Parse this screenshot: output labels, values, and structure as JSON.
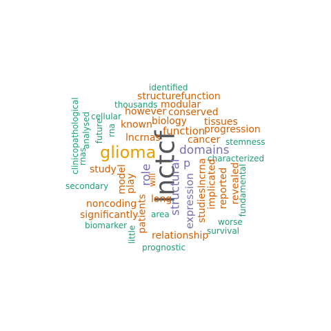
{
  "palette": {
    "gray": "#555555",
    "orange": "#d45f00",
    "gold": "#e69f00",
    "purple": "#7570b3",
    "green": "#1b9e77"
  },
  "words": [
    {
      "id": "lnctcf",
      "text": "lnctcf",
      "color": "gray"
    },
    {
      "id": "glioma",
      "text": "glioma",
      "color": "gold"
    },
    {
      "id": "domains",
      "text": "domains",
      "color": "purple"
    },
    {
      "id": "structural",
      "text": "structural",
      "color": "purple"
    },
    {
      "id": "expression",
      "text": "expression",
      "color": "purple"
    },
    {
      "id": "role",
      "text": "role",
      "color": "purple"
    },
    {
      "id": "p",
      "text": "p",
      "color": "purple"
    },
    {
      "id": "identified",
      "text": "identified",
      "color": "green"
    },
    {
      "id": "structurefunction",
      "text": "structurefunction",
      "color": "orange"
    },
    {
      "id": "thousands",
      "text": "thousands",
      "color": "green"
    },
    {
      "id": "modular",
      "text": "modular",
      "color": "orange"
    },
    {
      "id": "cellular",
      "text": "cellular",
      "color": "green"
    },
    {
      "id": "however",
      "text": "however",
      "color": "orange"
    },
    {
      "id": "conserved",
      "text": "conserved",
      "color": "orange"
    },
    {
      "id": "known",
      "text": "known",
      "color": "orange"
    },
    {
      "id": "biology",
      "text": "biology",
      "color": "orange"
    },
    {
      "id": "tissues",
      "text": "tissues",
      "color": "orange"
    },
    {
      "id": "function",
      "text": "function",
      "color": "orange"
    },
    {
      "id": "progression",
      "text": "progression",
      "color": "orange"
    },
    {
      "id": "lncrnas",
      "text": "lncrnas",
      "color": "orange"
    },
    {
      "id": "cancer",
      "text": "cancer",
      "color": "orange"
    },
    {
      "id": "stemness",
      "text": "stemness",
      "color": "green"
    },
    {
      "id": "characterized",
      "text": "characterized",
      "color": "green"
    },
    {
      "id": "study",
      "text": "study",
      "color": "orange"
    },
    {
      "id": "secondary",
      "text": "secondary",
      "color": "green"
    },
    {
      "id": "noncoding",
      "text": "noncoding",
      "color": "orange"
    },
    {
      "id": "long",
      "text": "long",
      "color": "orange"
    },
    {
      "id": "significantly",
      "text": "significantly",
      "color": "orange"
    },
    {
      "id": "area",
      "text": "area",
      "color": "green"
    },
    {
      "id": "biomarker",
      "text": "biomarker",
      "color": "green"
    },
    {
      "id": "worse",
      "text": "worse",
      "color": "green"
    },
    {
      "id": "relationship",
      "text": "relationship",
      "color": "orange"
    },
    {
      "id": "survival",
      "text": "survival",
      "color": "green"
    },
    {
      "id": "prognostic",
      "text": "prognostic",
      "color": "green"
    },
    {
      "id": "clinicopathological",
      "text": "clinicopathological",
      "color": "green"
    },
    {
      "id": "rnas",
      "text": "rnas",
      "color": "green"
    },
    {
      "id": "analysed",
      "text": "analysed",
      "color": "green"
    },
    {
      "id": "future",
      "text": "future",
      "color": "green"
    },
    {
      "id": "rna",
      "text": "rna",
      "color": "green"
    },
    {
      "id": "model",
      "text": "model",
      "color": "orange"
    },
    {
      "id": "play",
      "text": "play",
      "color": "orange"
    },
    {
      "id": "will",
      "text": "will",
      "color": "orange"
    },
    {
      "id": "patients",
      "text": "patients",
      "color": "orange"
    },
    {
      "id": "little",
      "text": "little",
      "color": "green"
    },
    {
      "id": "lncrna",
      "text": "lncrna",
      "color": "orange"
    },
    {
      "id": "studies",
      "text": "studies",
      "color": "orange"
    },
    {
      "id": "implicated",
      "text": "implicated",
      "color": "orange"
    },
    {
      "id": "reported",
      "text": "reported",
      "color": "orange"
    },
    {
      "id": "revealed",
      "text": "revealed",
      "color": "orange"
    },
    {
      "id": "fundamental",
      "text": "fundamental",
      "color": "green"
    }
  ]
}
